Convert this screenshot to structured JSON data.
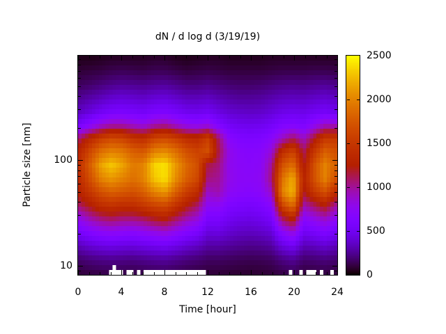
{
  "title": "dN / d log d (3/19/19)",
  "x_axis": {
    "label": "Time [hour]",
    "tick_labels": [
      "0",
      "4",
      "8",
      "12",
      "16",
      "20",
      "24"
    ]
  },
  "y_axis": {
    "label": "Particle size [nm]",
    "tick_labels": [
      "10",
      "100"
    ]
  },
  "colorbar": {
    "tick_labels": [
      "0",
      "500",
      "1000",
      "1500",
      "2000",
      "2500"
    ]
  },
  "chart_data": {
    "type": "heatmap",
    "title": "dN / d log d (3/19/19)",
    "xlabel": "Time [hour]",
    "ylabel": "Particle size [nm]",
    "x_range_hours": [
      0,
      24
    ],
    "x_major_ticks": [
      0,
      4,
      8,
      12,
      16,
      20,
      24
    ],
    "x_minor_step_hours": 1,
    "y_scale": "log",
    "y_range_nm": [
      8.2,
      970
    ],
    "y_major_ticks": [
      10,
      100
    ],
    "z_range": [
      0,
      2500
    ],
    "colorbar_ticks": [
      0,
      500,
      1000,
      1500,
      2000,
      2500
    ],
    "colorbar_inner_ticks": [
      500,
      1000,
      1500,
      2000
    ],
    "legend_position": "right colorbar",
    "grid": "off",
    "palette": "gnuplot rgbformulae 7,5,15 (black - violet - purple - red - orange - yellow)",
    "palette_stops": [
      "#000000",
      "#510096",
      "#7202f3",
      "#8004ff",
      "#8c07f3",
      "#a11096",
      "#b42000",
      "#c63700",
      "#d55700",
      "#e48300",
      "#f2ba00",
      "#ffff00"
    ],
    "x_hours": [
      0,
      1,
      2,
      3,
      4,
      5,
      6,
      7,
      8,
      9,
      10,
      11,
      12,
      13,
      14,
      15,
      16,
      17,
      18,
      19,
      20,
      21,
      22,
      23,
      24
    ],
    "y_sizes_nm": [
      970,
      716,
      531,
      394,
      292,
      216,
      160,
      119,
      88,
      65,
      48,
      36,
      27,
      20,
      14.7,
      10.9,
      8.1
    ],
    "values": [
      [
        40,
        40,
        50,
        60,
        60,
        60,
        60,
        70,
        70,
        50,
        40,
        50,
        60,
        60,
        50,
        50,
        50,
        50,
        60,
        60,
        60,
        60,
        60,
        60,
        60
      ],
      [
        90,
        100,
        110,
        130,
        140,
        130,
        120,
        140,
        140,
        120,
        100,
        110,
        120,
        110,
        100,
        100,
        100,
        100,
        110,
        120,
        120,
        120,
        130,
        130,
        120
      ],
      [
        150,
        170,
        200,
        230,
        250,
        240,
        230,
        250,
        260,
        230,
        200,
        200,
        220,
        200,
        180,
        170,
        170,
        180,
        200,
        220,
        230,
        220,
        240,
        250,
        230
      ],
      [
        250,
        290,
        330,
        380,
        400,
        380,
        360,
        400,
        410,
        370,
        330,
        330,
        350,
        310,
        280,
        260,
        260,
        270,
        300,
        330,
        340,
        330,
        360,
        380,
        350
      ],
      [
        350,
        420,
        500,
        560,
        580,
        550,
        520,
        580,
        600,
        540,
        480,
        470,
        500,
        430,
        380,
        360,
        350,
        360,
        400,
        450,
        470,
        450,
        500,
        530,
        480
      ],
      [
        550,
        700,
        850,
        950,
        950,
        880,
        820,
        950,
        1000,
        880,
        780,
        750,
        800,
        620,
        520,
        480,
        470,
        480,
        530,
        620,
        650,
        600,
        750,
        900,
        900
      ],
      [
        1100,
        1350,
        1550,
        1650,
        1600,
        1450,
        1400,
        1600,
        1650,
        1550,
        1400,
        1350,
        1550,
        1100,
        700,
        620,
        600,
        620,
        700,
        900,
        1100,
        900,
        1200,
        1500,
        1500
      ],
      [
        1350,
        1650,
        1900,
        2000,
        1950,
        1800,
        1750,
        2000,
        2050,
        1900,
        1700,
        1600,
        1700,
        1150,
        800,
        700,
        680,
        700,
        850,
        1400,
        1600,
        1100,
        1500,
        1800,
        1700
      ],
      [
        1450,
        1800,
        2150,
        2300,
        2150,
        1950,
        2000,
        2350,
        2400,
        2100,
        1850,
        1700,
        1150,
        1050,
        780,
        720,
        700,
        730,
        1000,
        1700,
        1900,
        1200,
        1700,
        2000,
        1800
      ],
      [
        1400,
        1700,
        2000,
        2100,
        2000,
        1900,
        2000,
        2300,
        2400,
        2050,
        1800,
        1650,
        1050,
        1000,
        800,
        730,
        720,
        750,
        1050,
        1900,
        2200,
        1300,
        1700,
        2000,
        1700
      ],
      [
        1300,
        1500,
        1700,
        1800,
        1750,
        1700,
        1800,
        2000,
        2100,
        1800,
        1550,
        1400,
        900,
        950,
        750,
        700,
        680,
        720,
        900,
        2000,
        2250,
        1200,
        1500,
        1700,
        1400
      ],
      [
        1100,
        1250,
        1400,
        1450,
        1400,
        1400,
        1500,
        1600,
        1650,
        1450,
        1250,
        1100,
        750,
        750,
        620,
        580,
        560,
        600,
        700,
        1600,
        1900,
        950,
        1100,
        1250,
        1000
      ],
      [
        800,
        950,
        1050,
        1100,
        1050,
        1050,
        1100,
        1200,
        1250,
        1100,
        950,
        850,
        580,
        580,
        500,
        460,
        450,
        480,
        550,
        1100,
        1300,
        700,
        800,
        900,
        750
      ],
      [
        550,
        650,
        720,
        750,
        720,
        700,
        750,
        800,
        850,
        750,
        650,
        580,
        420,
        430,
        380,
        350,
        340,
        360,
        400,
        700,
        850,
        500,
        550,
        620,
        520
      ],
      [
        330,
        390,
        430,
        450,
        430,
        420,
        450,
        480,
        500,
        450,
        390,
        350,
        280,
        280,
        260,
        240,
        230,
        240,
        270,
        420,
        500,
        320,
        340,
        380,
        330
      ],
      [
        180,
        210,
        230,
        240,
        230,
        220,
        240,
        260,
        270,
        240,
        210,
        190,
        160,
        160,
        150,
        140,
        135,
        140,
        155,
        220,
        260,
        180,
        190,
        210,
        185
      ],
      [
        100,
        115,
        125,
        130,
        125,
        120,
        130,
        140,
        145,
        130,
        115,
        105,
        95,
        95,
        90,
        85,
        80,
        85,
        95,
        120,
        140,
        100,
        105,
        115,
        100
      ]
    ],
    "missing_data_bottom_row_hours": [
      [
        3.0,
        4.1
      ],
      [
        4.4,
        4.6
      ],
      [
        4.9,
        5.1
      ],
      [
        5.4,
        5.7
      ],
      [
        6.2,
        11.9
      ],
      [
        19.6,
        19.9
      ],
      [
        20.4,
        20.7
      ],
      [
        21.2,
        22.2
      ],
      [
        22.5,
        22.7
      ],
      [
        23.2,
        23.6
      ]
    ],
    "missing_data_second_row_hours": [
      [
        3.15,
        3.5
      ]
    ]
  }
}
